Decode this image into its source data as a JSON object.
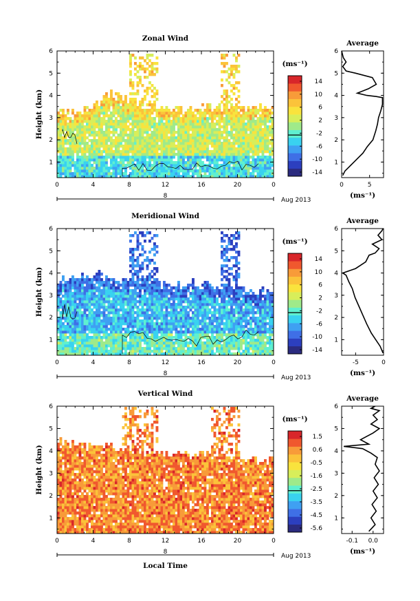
{
  "chart_data": [
    {
      "type": "heatmap",
      "title": "Zonal Wind",
      "ylabel": "Height (km)",
      "xlabel": "",
      "x_ticks": [
        "0",
        "4",
        "8",
        "12",
        "16",
        "20",
        "0"
      ],
      "y_ticks": [
        "1",
        "2",
        "3",
        "4",
        "5",
        "6"
      ],
      "xlim": [
        0,
        24
      ],
      "ylim": [
        0.3,
        6
      ],
      "date_label": "8",
      "month_label": "Aug 2013",
      "colorbar": {
        "unit": "(ms⁻¹)",
        "ticks": [
          "14",
          "10",
          "6",
          "2",
          "-2",
          "-6",
          "-10",
          "-14"
        ],
        "range": [
          -16,
          16
        ]
      },
      "field": {
        "description_free": true,
        "data_top_km": [
          3.3,
          3.4,
          4.2,
          3.6,
          3.5,
          3.5,
          3.5,
          3.5,
          3.6
        ],
        "sparse_top_km": 5.9,
        "sparse_windows_h": [
          [
            8,
            11
          ],
          [
            18,
            20
          ]
        ],
        "dominant_values": [
          6,
          2,
          -4
        ]
      }
    },
    {
      "type": "line",
      "title": "Average",
      "xlabel": "(ms⁻¹)",
      "x_ticks": [
        "0",
        "5"
      ],
      "y_ticks": [
        "1",
        "2",
        "3",
        "4",
        "5",
        "6"
      ],
      "xlim": [
        0,
        7.5
      ],
      "ylim": [
        0.3,
        6
      ],
      "series": [
        {
          "x": [
            0.2,
            0.6,
            1.4,
            2.2,
            3.0,
            3.8,
            4.6,
            5.6,
            6.1,
            6.4,
            6.6,
            7.0,
            7.3,
            7.3,
            6.2,
            4.5,
            2.8,
            4.8,
            6.2,
            5.5,
            2.5,
            0.8,
            0.2,
            0.8,
            0.3,
            0.1,
            0.0
          ],
          "y": [
            0.4,
            0.6,
            0.8,
            1.0,
            1.2,
            1.4,
            1.7,
            2.0,
            2.4,
            2.7,
            3.0,
            3.3,
            3.6,
            3.9,
            3.95,
            4.0,
            4.1,
            4.3,
            4.5,
            4.8,
            5.0,
            5.1,
            5.3,
            5.5,
            5.7,
            5.9,
            6.0
          ]
        }
      ]
    },
    {
      "type": "heatmap",
      "title": "Meridional Wind",
      "ylabel": "Height (km)",
      "xlabel": "",
      "x_ticks": [
        "0",
        "4",
        "8",
        "12",
        "16",
        "20",
        "0"
      ],
      "y_ticks": [
        "1",
        "2",
        "3",
        "4",
        "5",
        "6"
      ],
      "xlim": [
        0,
        24
      ],
      "ylim": [
        0.3,
        6
      ],
      "date_label": "8",
      "month_label": "Aug 2013",
      "colorbar": {
        "unit": "(ms⁻¹)",
        "ticks": [
          "14",
          "10",
          "6",
          "2",
          "-2",
          "-6",
          "-10",
          "-14"
        ],
        "range": [
          -16,
          16
        ]
      },
      "field": {
        "data_top_km": [
          3.8,
          4.0,
          3.9,
          3.7,
          3.5,
          3.6,
          3.4,
          3.3,
          3.2
        ],
        "sparse_top_km": 5.9,
        "sparse_windows_h": [
          [
            8,
            11
          ],
          [
            18,
            20
          ]
        ],
        "dominant_values": [
          -10,
          -6,
          -2
        ]
      }
    },
    {
      "type": "line",
      "title": "Average",
      "xlabel": "(ms⁻¹)",
      "x_ticks": [
        "-5",
        "0"
      ],
      "y_ticks": [
        "1",
        "2",
        "3",
        "4",
        "5",
        "6"
      ],
      "xlim": [
        -7.5,
        0
      ],
      "ylim": [
        0.3,
        6
      ],
      "series": [
        {
          "x": [
            -0.1,
            -0.6,
            -1.4,
            -2.2,
            -3.0,
            -3.7,
            -4.4,
            -5.1,
            -5.6,
            -6.2,
            -6.7,
            -7.3,
            -5.0,
            -3.2,
            -2.6,
            -1.5,
            -0.8,
            -2.0,
            -0.3,
            -1.0,
            -0.3,
            -0.1
          ],
          "y": [
            0.4,
            0.7,
            1.0,
            1.3,
            1.7,
            2.1,
            2.5,
            2.9,
            3.3,
            3.6,
            3.9,
            4.0,
            4.2,
            4.5,
            4.8,
            4.9,
            5.1,
            5.3,
            5.5,
            5.7,
            5.9,
            6.0
          ]
        }
      ]
    },
    {
      "type": "heatmap",
      "title": "Vertical Wind",
      "ylabel": "Height (km)",
      "xlabel": "Local Time",
      "x_ticks": [
        "0",
        "4",
        "8",
        "12",
        "16",
        "20",
        "0"
      ],
      "y_ticks": [
        "1",
        "2",
        "3",
        "4",
        "5",
        "6"
      ],
      "xlim": [
        0,
        24
      ],
      "ylim": [
        0.3,
        6
      ],
      "date_label": "8",
      "month_label": "Aug 2013",
      "colorbar": {
        "unit": "(ms⁻¹)",
        "ticks": [
          "1.5",
          "0.6",
          "-0.5",
          "-1.6",
          "-2.5",
          "-3.5",
          "-4.5",
          "-5.6"
        ],
        "range": [
          -6,
          2
        ]
      },
      "field": {
        "data_top_km": [
          4.5,
          4.3,
          4.2,
          4.0,
          3.9,
          4.0,
          3.8,
          3.7,
          3.6
        ],
        "sparse_top_km": 6.0,
        "sparse_windows_h": [
          [
            7,
            11
          ],
          [
            17,
            20
          ]
        ],
        "dominant_values": [
          0.2,
          0.6,
          -0.5
        ]
      }
    },
    {
      "type": "line",
      "title": "Average",
      "xlabel": "(ms⁻¹)",
      "x_ticks": [
        "-0.1",
        "0.0"
      ],
      "y_ticks": [
        "1",
        "2",
        "3",
        "4",
        "5",
        "6"
      ],
      "xlim": [
        -0.15,
        0.05
      ],
      "ylim": [
        0.3,
        6
      ],
      "series": [
        {
          "x": [
            -0.02,
            0.01,
            -0.01,
            0.015,
            -0.005,
            0.02,
            0.0,
            0.025,
            0.005,
            0.03,
            0.01,
            0.02,
            -0.01,
            -0.05,
            -0.14,
            -0.02,
            -0.06,
            0.0,
            0.03,
            -0.01,
            0.02,
            0.0,
            0.03,
            -0.01,
            0.01
          ],
          "y": [
            0.4,
            0.7,
            1.0,
            1.3,
            1.6,
            1.9,
            2.2,
            2.5,
            2.8,
            3.1,
            3.4,
            3.7,
            3.9,
            4.1,
            4.2,
            4.3,
            4.5,
            4.8,
            5.0,
            5.2,
            5.4,
            5.6,
            5.8,
            5.9,
            6.0
          ]
        }
      ]
    }
  ],
  "colors": {
    "palette": [
      "#2b2b7f",
      "#2c3fbf",
      "#3f6fe6",
      "#3fa0f2",
      "#39d2f0",
      "#5ff0d0",
      "#9fea8a",
      "#d8ee5a",
      "#f9e33d",
      "#fbc33a",
      "#f89b39",
      "#f0582e",
      "#d8262a"
    ],
    "contour": "#000000"
  }
}
